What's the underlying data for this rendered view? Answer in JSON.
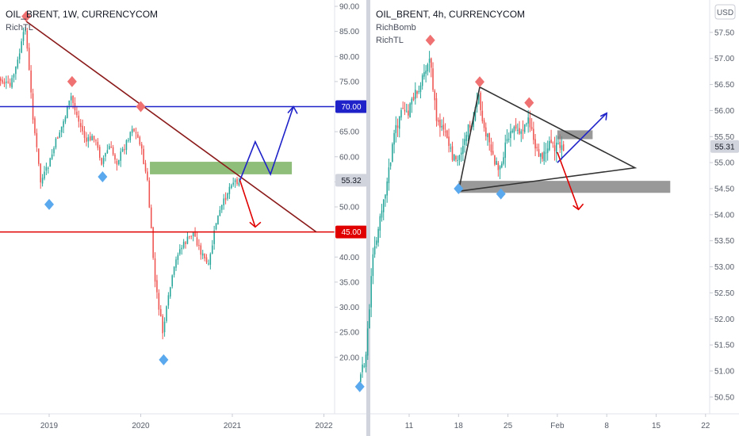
{
  "colors": {
    "bull": "#26a69a",
    "bear": "#ef5350",
    "axis_text": "#555b66",
    "blue_line": "#1e22c8",
    "red_line": "#e00000",
    "trend_line": "#8b1a1a",
    "green_zone": "#6aa84f",
    "gray_zone": "#808080",
    "marker_top": "#f07171",
    "marker_bottom": "#5aa9ee",
    "price_tag": "#d1d4dc"
  },
  "usd_button": "USD",
  "chart_data": [
    {
      "type": "candlestick",
      "title": "OIL_BRENT, 1W, CURRENCYCOM",
      "indicators": [
        "RichTL"
      ],
      "ylim": [
        10,
        90
      ],
      "y_ticks": [
        "20.00",
        "25.00",
        "30.00",
        "35.00",
        "40.00",
        "45.00",
        "50.00",
        "55.00",
        "60.00",
        "65.00",
        "70.00",
        "75.00",
        "80.00",
        "85.00",
        "90.00"
      ],
      "x_ticks": [
        "2019",
        "2020",
        "2021",
        "2022"
      ],
      "levels": [
        {
          "name": "resistance",
          "value": 70.0,
          "label": "70.00",
          "color": "blue"
        },
        {
          "name": "support",
          "value": 45.0,
          "label": "45.00",
          "color": "red"
        }
      ],
      "current_price": "55.32",
      "zone": {
        "y_low": 56.5,
        "y_high": 59.0,
        "color": "green"
      },
      "trendline": [
        [
          "2018-10",
          87
        ],
        [
          "2021-12",
          45
        ]
      ],
      "path_up": [
        [
          "2021-02",
          55.3
        ],
        [
          "2021-04",
          63
        ],
        [
          "2021-06",
          56.5
        ],
        [
          "2021-09",
          70
        ]
      ],
      "path_down": [
        [
          "2021-02",
          55.3
        ],
        [
          "2021-04",
          46
        ]
      ],
      "markers": [
        {
          "date": "2018-10",
          "y": 88,
          "kind": "top"
        },
        {
          "date": "2019-04",
          "y": 75,
          "kind": "top"
        },
        {
          "date": "2020-01",
          "y": 70,
          "kind": "top"
        },
        {
          "date": "2019-01",
          "y": 50.5,
          "kind": "bottom"
        },
        {
          "date": "2019-08",
          "y": 56,
          "kind": "bottom"
        },
        {
          "date": "2020-04",
          "y": 19.5,
          "kind": "bottom"
        }
      ],
      "path_points": [
        [
          "2018-06",
          76
        ],
        [
          "2018-07",
          75
        ],
        [
          "2018-08",
          74
        ],
        [
          "2018-09",
          79
        ],
        [
          "2018-10",
          86
        ],
        [
          "2018-11",
          68
        ],
        [
          "2018-12",
          55
        ],
        [
          "2019-01",
          58
        ],
        [
          "2019-02",
          63
        ],
        [
          "2019-03",
          67
        ],
        [
          "2019-04",
          72
        ],
        [
          "2019-05",
          67
        ],
        [
          "2019-06",
          63
        ],
        [
          "2019-07",
          64
        ],
        [
          "2019-08",
          59
        ],
        [
          "2019-09",
          62
        ],
        [
          "2019-10",
          59
        ],
        [
          "2019-11",
          62
        ],
        [
          "2019-12",
          66
        ],
        [
          "2020-01",
          63
        ],
        [
          "2020-02",
          55
        ],
        [
          "2020-03",
          35
        ],
        [
          "2020-04",
          25
        ],
        [
          "2020-05",
          34
        ],
        [
          "2020-06",
          41
        ],
        [
          "2020-07",
          43
        ],
        [
          "2020-08",
          45
        ],
        [
          "2020-09",
          41
        ],
        [
          "2020-10",
          38
        ],
        [
          "2020-11",
          47
        ],
        [
          "2020-12",
          51
        ],
        [
          "2021-01",
          55
        ],
        [
          "2021-02",
          55.3
        ]
      ]
    },
    {
      "type": "candlestick",
      "title": "OIL_BRENT, 4h, CURRENCYCOM",
      "indicators": [
        "RichBomb",
        "RichTL"
      ],
      "ylim": [
        50.3,
        58.0
      ],
      "y_ticks": [
        "50.50",
        "51.00",
        "51.50",
        "52.00",
        "52.50",
        "53.00",
        "53.50",
        "54.00",
        "54.50",
        "55.00",
        "55.50",
        "56.00",
        "56.50",
        "57.00",
        "57.50"
      ],
      "x_ticks": [
        "11",
        "18",
        "25",
        "Feb",
        "8",
        "15",
        "22"
      ],
      "current_price": "55.31",
      "zones": [
        {
          "name": "upper-resistance-zone",
          "x_from": "Feb 1",
          "x_to": "Feb 6",
          "y_low": 55.45,
          "y_high": 55.62
        },
        {
          "name": "lower-support-zone",
          "x_from": "Jan 18",
          "x_to": "Feb 17",
          "y_low": 54.42,
          "y_high": 54.65
        }
      ],
      "triangle": [
        [
          "Jan 21",
          56.45
        ],
        [
          "Feb 12",
          54.9
        ],
        [
          "Jan 18",
          54.45
        ]
      ],
      "path_up": [
        [
          "Feb 1",
          55.0
        ],
        [
          "Feb 8",
          55.95
        ]
      ],
      "path_down": [
        [
          "Feb 1",
          55.2
        ],
        [
          "Feb 4",
          54.1
        ]
      ],
      "markers": [
        {
          "date": "Jan 14",
          "y": 57.35,
          "kind": "top"
        },
        {
          "date": "Jan 21",
          "y": 56.55,
          "kind": "top"
        },
        {
          "date": "Jan 28",
          "y": 56.15,
          "kind": "top"
        },
        {
          "date": "Jan 4",
          "y": 50.7,
          "kind": "bottom"
        },
        {
          "date": "Jan 18",
          "y": 54.5,
          "kind": "bottom"
        },
        {
          "date": "Jan 24",
          "y": 54.4,
          "kind": "bottom"
        }
      ],
      "path_points": [
        [
          "Jan 4",
          50.8
        ],
        [
          "Jan 5",
          51.3
        ],
        [
          "Jan 6",
          53.2
        ],
        [
          "Jan 7",
          54.0
        ],
        [
          "Jan 8",
          54.6
        ],
        [
          "Jan 9",
          55.5
        ],
        [
          "Jan 10",
          56.0
        ],
        [
          "Jan 11",
          56.0
        ],
        [
          "Jan 12",
          56.3
        ],
        [
          "Jan 13",
          56.6
        ],
        [
          "Jan 14",
          57.1
        ],
        [
          "Jan 15",
          55.8
        ],
        [
          "Jan 16",
          55.6
        ],
        [
          "Jan 17",
          55.2
        ],
        [
          "Jan 18",
          55.0
        ],
        [
          "Jan 19",
          55.5
        ],
        [
          "Jan 20",
          55.8
        ],
        [
          "Jan 21",
          56.2
        ],
        [
          "Jan 22",
          55.6
        ],
        [
          "Jan 23",
          55.1
        ],
        [
          "Jan 24",
          54.9
        ],
        [
          "Jan 25",
          55.5
        ],
        [
          "Jan 26",
          55.7
        ],
        [
          "Jan 27",
          55.5
        ],
        [
          "Jan 28",
          55.9
        ],
        [
          "Jan 29",
          55.3
        ],
        [
          "Jan 30",
          55.1
        ],
        [
          "Jan 31",
          55.4
        ],
        [
          "Feb 1",
          55.3
        ],
        [
          "Feb 2",
          55.31
        ]
      ]
    }
  ]
}
